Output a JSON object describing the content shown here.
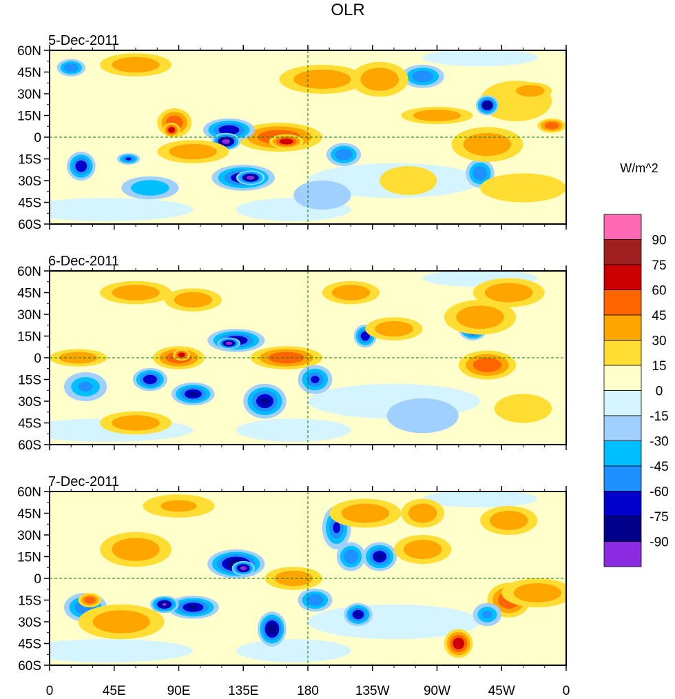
{
  "chart_data": {
    "type": "heatmap",
    "title": "OLR",
    "units_label": "W/m^2",
    "panels": [
      {
        "label": "5-Dec-2011",
        "blobs": [
          [
            -35,
            25,
            25,
            14,
            1.0
          ],
          [
            -25,
            32,
            15,
            6,
            2.5
          ],
          [
            160,
            0,
            30,
            10,
            3.6
          ],
          [
            165,
            -3,
            12,
            5,
            4.6
          ],
          [
            125,
            5,
            18,
            8,
            -4.5
          ],
          [
            123,
            -3,
            10,
            6,
            -6.5
          ],
          [
            135,
            -28,
            22,
            9,
            -5.0
          ],
          [
            140,
            -28,
            10,
            5,
            -6.5
          ],
          [
            -100,
            42,
            15,
            8,
            -3.5
          ],
          [
            -55,
            22,
            8,
            7,
            -5.6
          ],
          [
            -60,
            -25,
            10,
            10,
            -3.2
          ],
          [
            -155,
            -12,
            12,
            8,
            -3.2
          ],
          [
            87,
            10,
            12,
            10,
            3.5
          ],
          [
            85,
            5,
            6,
            5,
            4.2
          ],
          [
            55,
            -15,
            8,
            4,
            -4.0
          ],
          [
            22,
            -20,
            10,
            10,
            -4.4
          ],
          [
            -170,
            40,
            30,
            10,
            2.6
          ],
          [
            -130,
            40,
            20,
            12,
            2.8
          ],
          [
            -55,
            -5,
            25,
            12,
            2.5
          ],
          [
            -10,
            8,
            10,
            5,
            3.4
          ],
          [
            60,
            50,
            25,
            8,
            2.4
          ],
          [
            15,
            48,
            10,
            6,
            -3.5
          ],
          [
            70,
            -35,
            20,
            8,
            -2.5
          ],
          [
            -30,
            -35,
            30,
            10,
            1.8
          ],
          [
            100,
            -10,
            25,
            8,
            2.2
          ],
          [
            -110,
            -30,
            20,
            10,
            1.8
          ],
          [
            -90,
            15,
            25,
            6,
            2.4
          ],
          [
            -170,
            -40,
            20,
            10,
            -1.5
          ]
        ]
      },
      {
        "label": "6-Dec-2011",
        "blobs": [
          [
            130,
            12,
            20,
            8,
            -5.0
          ],
          [
            125,
            10,
            8,
            4,
            -6.5
          ],
          [
            -140,
            15,
            8,
            8,
            -4.5
          ],
          [
            -65,
            20,
            10,
            8,
            -5.5
          ],
          [
            165,
            0,
            25,
            8,
            3.5
          ],
          [
            90,
            0,
            18,
            8,
            3.6
          ],
          [
            92,
            2,
            6,
            4,
            4.5
          ],
          [
            70,
            -15,
            12,
            8,
            -4.5
          ],
          [
            100,
            -25,
            15,
            8,
            -5.0
          ],
          [
            150,
            -30,
            15,
            12,
            -5.0
          ],
          [
            -175,
            -15,
            12,
            10,
            -4.0
          ],
          [
            -55,
            -5,
            20,
            10,
            3.5
          ],
          [
            -60,
            28,
            25,
            12,
            2.6
          ],
          [
            -120,
            20,
            20,
            8,
            2.5
          ],
          [
            25,
            -20,
            15,
            10,
            -3.0
          ],
          [
            20,
            0,
            20,
            6,
            2.6
          ],
          [
            60,
            45,
            25,
            8,
            2.2
          ],
          [
            -40,
            45,
            25,
            10,
            2.5
          ],
          [
            -150,
            45,
            20,
            8,
            2.2
          ],
          [
            100,
            40,
            20,
            8,
            2.4
          ],
          [
            -100,
            -40,
            25,
            12,
            -1.5
          ],
          [
            60,
            -45,
            25,
            8,
            2.2
          ],
          [
            -30,
            -35,
            20,
            10,
            1.8
          ]
        ]
      },
      {
        "label": "7-Dec-2011",
        "blobs": [
          [
            130,
            10,
            20,
            10,
            -5.5
          ],
          [
            135,
            7,
            8,
            5,
            -6.8
          ],
          [
            -150,
            15,
            10,
            10,
            -3.5
          ],
          [
            -130,
            15,
            12,
            10,
            -5.0
          ],
          [
            -160,
            35,
            10,
            15,
            -4.0
          ],
          [
            100,
            -20,
            18,
            8,
            -5.0
          ],
          [
            80,
            -18,
            10,
            6,
            -6.0
          ],
          [
            155,
            -35,
            10,
            12,
            -5.5
          ],
          [
            -145,
            -25,
            10,
            8,
            -5.0
          ],
          [
            -175,
            -15,
            12,
            8,
            -3.5
          ],
          [
            25,
            -20,
            15,
            10,
            -3.5
          ],
          [
            28,
            -15,
            8,
            5,
            3.8
          ],
          [
            -75,
            -45,
            10,
            10,
            4.2
          ],
          [
            -40,
            -15,
            15,
            12,
            3.5
          ],
          [
            -55,
            -25,
            10,
            8,
            -3.0
          ],
          [
            -140,
            45,
            25,
            10,
            2.6
          ],
          [
            -100,
            45,
            15,
            10,
            2.5
          ],
          [
            60,
            20,
            25,
            12,
            2.4
          ],
          [
            50,
            -30,
            30,
            12,
            2.3
          ],
          [
            -20,
            -10,
            25,
            10,
            2.2
          ],
          [
            90,
            50,
            25,
            8,
            2.0
          ],
          [
            170,
            0,
            20,
            8,
            2.8
          ],
          [
            -40,
            40,
            20,
            10,
            2.4
          ],
          [
            -100,
            20,
            20,
            10,
            2.2
          ]
        ]
      }
    ],
    "x_ticks": [
      "0",
      "45E",
      "90E",
      "135E",
      "180",
      "135W",
      "90W",
      "45W",
      "0"
    ],
    "x_tick_values": [
      0,
      45,
      90,
      135,
      180,
      225,
      270,
      315,
      360
    ],
    "y_ticks": [
      "60N",
      "45N",
      "30N",
      "15N",
      "0",
      "15S",
      "30S",
      "45S",
      "60S"
    ],
    "y_tick_values": [
      60,
      45,
      30,
      15,
      0,
      -15,
      -30,
      -45,
      -60
    ],
    "xlim": [
      0,
      360
    ],
    "ylim": [
      -60,
      60
    ],
    "colorbar": {
      "levels": [
        "90",
        "75",
        "60",
        "45",
        "30",
        "15",
        "0",
        "-15",
        "-30",
        "-45",
        "-60",
        "-75",
        "-90"
      ],
      "colors": [
        "#ff69b4",
        "#a02020",
        "#cc0000",
        "#ff6600",
        "#ffa500",
        "#ffdd33",
        "#ffffcc",
        "#d4f4ff",
        "#a0d0ff",
        "#00bfff",
        "#1e90ff",
        "#0000cd",
        "#00008b",
        "#8a2be2"
      ],
      "position": "right"
    },
    "overlays": {
      "coastline_color": "#007700",
      "missing_data_color": "#bbbbbb",
      "reference_lines": [
        "equator",
        "dateline"
      ]
    }
  }
}
